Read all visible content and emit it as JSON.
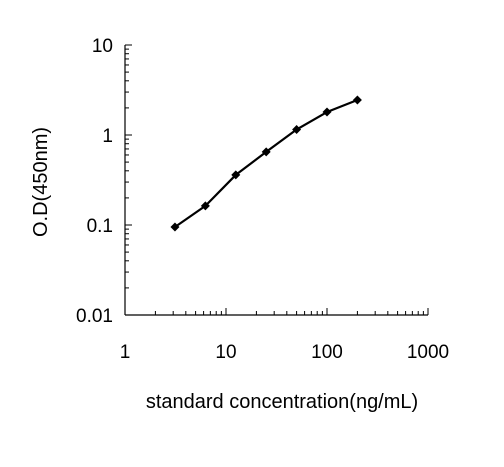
{
  "chart_data": {
    "type": "line",
    "title": "",
    "xlabel": "standard concentration(ng/mL)",
    "ylabel": "O.D(450nm)",
    "x_scale": "log",
    "y_scale": "log",
    "xlim": [
      1,
      1000
    ],
    "ylim": [
      0.01,
      10
    ],
    "x_tick_labels": [
      "1",
      "10",
      "100",
      "1000"
    ],
    "y_tick_labels": [
      "0.01",
      "0.1",
      "1",
      "10"
    ],
    "grid": false,
    "legend": "none",
    "series": [
      {
        "x": [
          3.125,
          6.25,
          12.5,
          25,
          50,
          100,
          200
        ],
        "y": [
          0.095,
          0.163,
          0.36,
          0.65,
          1.15,
          1.8,
          2.45
        ],
        "marker": "diamond",
        "color": "#000000"
      }
    ]
  }
}
